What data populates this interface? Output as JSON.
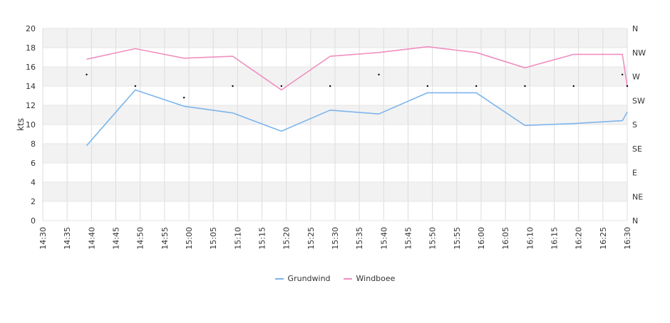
{
  "chart_data": {
    "type": "line",
    "ylabel": "kts",
    "ylim": [
      0,
      20
    ],
    "y_ticks": [
      "0",
      "2",
      "4",
      "6",
      "8",
      "10",
      "12",
      "14",
      "16",
      "18",
      "20"
    ],
    "x_ticks": [
      "14:30",
      "14:35",
      "14:40",
      "14:45",
      "14:50",
      "14:55",
      "15:00",
      "15:05",
      "15:10",
      "15:15",
      "15:20",
      "15:25",
      "15:30",
      "15:35",
      "15:40",
      "15:45",
      "15:50",
      "15:55",
      "16:00",
      "16:05",
      "16:10",
      "16:15",
      "16:20",
      "16:25",
      "16:30"
    ],
    "x_range_minutes": [
      0,
      120
    ],
    "right_axis_labels": [
      "N",
      "NE",
      "E",
      "SE",
      "S",
      "SW",
      "W",
      "NW",
      "N"
    ],
    "right_axis_range": [
      0,
      360
    ],
    "grid": true,
    "legend_position": "bottom",
    "series": [
      {
        "name": "Grundwind",
        "color": "#7cb5ec",
        "points": [
          [
            "14:39",
            7.8
          ],
          [
            "14:49",
            13.6
          ],
          [
            "14:59",
            11.9
          ],
          [
            "15:09",
            11.2
          ],
          [
            "15:19",
            9.3
          ],
          [
            "15:29",
            11.5
          ],
          [
            "15:39",
            11.1
          ],
          [
            "15:49",
            13.3
          ],
          [
            "15:59",
            13.3
          ],
          [
            "16:09",
            9.9
          ],
          [
            "16:19",
            10.1
          ],
          [
            "16:29",
            10.4
          ],
          [
            "16:30",
            11.3
          ]
        ]
      },
      {
        "name": "Windboee",
        "color": "#f08fbf",
        "points": [
          [
            "14:39",
            16.8
          ],
          [
            "14:49",
            17.9
          ],
          [
            "14:59",
            16.9
          ],
          [
            "15:09",
            17.1
          ],
          [
            "15:19",
            13.6
          ],
          [
            "15:29",
            17.1
          ],
          [
            "15:39",
            17.5
          ],
          [
            "15:49",
            18.1
          ],
          [
            "15:59",
            17.5
          ],
          [
            "16:09",
            15.9
          ],
          [
            "16:19",
            17.3
          ],
          [
            "16:29",
            17.3
          ],
          [
            "16:30",
            14.0
          ]
        ]
      }
    ],
    "direction_markers": [
      [
        "14:39",
        15.2
      ],
      [
        "14:49",
        14.0
      ],
      [
        "14:59",
        12.8
      ],
      [
        "15:09",
        14.0
      ],
      [
        "15:19",
        14.0
      ],
      [
        "15:29",
        14.0
      ],
      [
        "15:39",
        15.2
      ],
      [
        "15:49",
        14.0
      ],
      [
        "15:59",
        14.0
      ],
      [
        "16:09",
        14.0
      ],
      [
        "16:19",
        14.0
      ],
      [
        "16:29",
        15.2
      ],
      [
        "16:30",
        14.0
      ]
    ]
  }
}
